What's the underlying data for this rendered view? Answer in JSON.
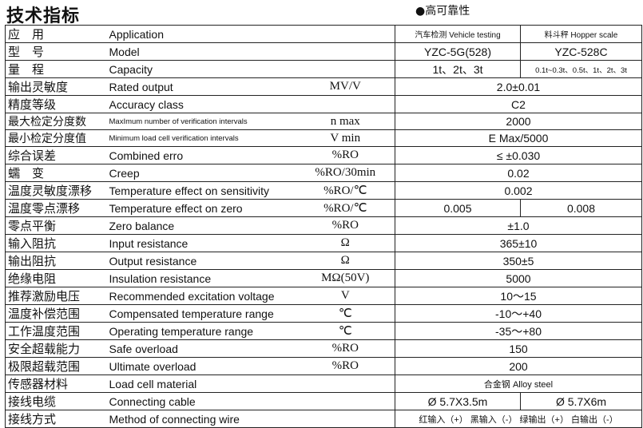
{
  "title": "技术指标",
  "badge": "●高可靠性",
  "rows": [
    {
      "cn": "应　用",
      "en": "Application",
      "unit": "",
      "values": [
        "汽车检测 Vehicle testing",
        "料斗秤 Hopper scale"
      ]
    },
    {
      "cn": "型　号",
      "en": "Model",
      "unit": "",
      "values": [
        "YZC-5G(528)",
        "YZC-528C"
      ]
    },
    {
      "cn": "量　程",
      "en": "Capacity",
      "unit": "",
      "values": [
        "1t、2t、3t",
        "0.1t~0.3t、0.5t、1t、2t、3t"
      ]
    },
    {
      "cn": "输出灵敏度",
      "en": "Rated output",
      "unit": "MV/V",
      "values": [
        "2.0±0.01"
      ]
    },
    {
      "cn": "精度等级",
      "en": "Accuracy class",
      "unit": "",
      "values": [
        "C2"
      ]
    },
    {
      "cn": "最大检定分度数",
      "en": "MaxImum number of verification intervals",
      "unit": "n max",
      "values": [
        "2000"
      ]
    },
    {
      "cn": "最小检定分度值",
      "en": "Minimum load cell verification intervals",
      "unit": "V min",
      "values": [
        "E Max/5000"
      ]
    },
    {
      "cn": "综合误差",
      "en": "Combined erro",
      "unit": "%RO",
      "values": [
        "≤ ±0.030"
      ]
    },
    {
      "cn": "蠕　变",
      "en": "Creep",
      "unit": "%RO/30min",
      "values": [
        "0.02"
      ]
    },
    {
      "cn": "温度灵敏度漂移",
      "en": "Temperature effect on sensitivity",
      "unit": "%RO/℃",
      "values": [
        "0.002"
      ]
    },
    {
      "cn": "温度零点漂移",
      "en": "Temperature effect on zero",
      "unit": "%RO/℃",
      "values": [
        "0.005",
        "0.008"
      ]
    },
    {
      "cn": "零点平衡",
      "en": "Zero balance",
      "unit": "%RO",
      "values": [
        "±1.0"
      ]
    },
    {
      "cn": "输入阻抗",
      "en": "Input resistance",
      "unit": "Ω",
      "values": [
        "365±10"
      ]
    },
    {
      "cn": "输出阻抗",
      "en": "Output resistance",
      "unit": "Ω",
      "values": [
        "350±5"
      ]
    },
    {
      "cn": "绝缘电阻",
      "en": "Insulation resistance",
      "unit": "MΩ(50V)",
      "values": [
        "5000"
      ]
    },
    {
      "cn": "推荐激励电压",
      "en": "Recommended excitation voltage",
      "unit": "V",
      "values": [
        "10～15"
      ]
    },
    {
      "cn": "温度补偿范围",
      "en": "Compensated temperature range",
      "unit": "℃",
      "values": [
        "-10～+40"
      ]
    },
    {
      "cn": "工作温度范围",
      "en": "Operating temperature range",
      "unit": "℃",
      "values": [
        "-35～+80"
      ]
    },
    {
      "cn": "安全超载能力",
      "en": "Safe overload",
      "unit": "%RO",
      "values": [
        "150"
      ]
    },
    {
      "cn": "极限超载范围",
      "en": "Ultimate overload",
      "unit": "%RO",
      "values": [
        "200"
      ]
    },
    {
      "cn": "传感器材料",
      "en": "Load cell material",
      "unit": "",
      "values": [
        "合金钢 Alloy steel"
      ]
    },
    {
      "cn": "接线电缆",
      "en": "Connecting cable",
      "unit": "",
      "values": [
        "Ø 5.7X3.5m",
        "Ø 5.7X6m"
      ]
    },
    {
      "cn": "接线方式",
      "en": "Method of connecting wire",
      "unit": "",
      "values": [
        "红输入（+） 黑输入（-） 绿输出（+） 白输出（-）"
      ]
    }
  ]
}
